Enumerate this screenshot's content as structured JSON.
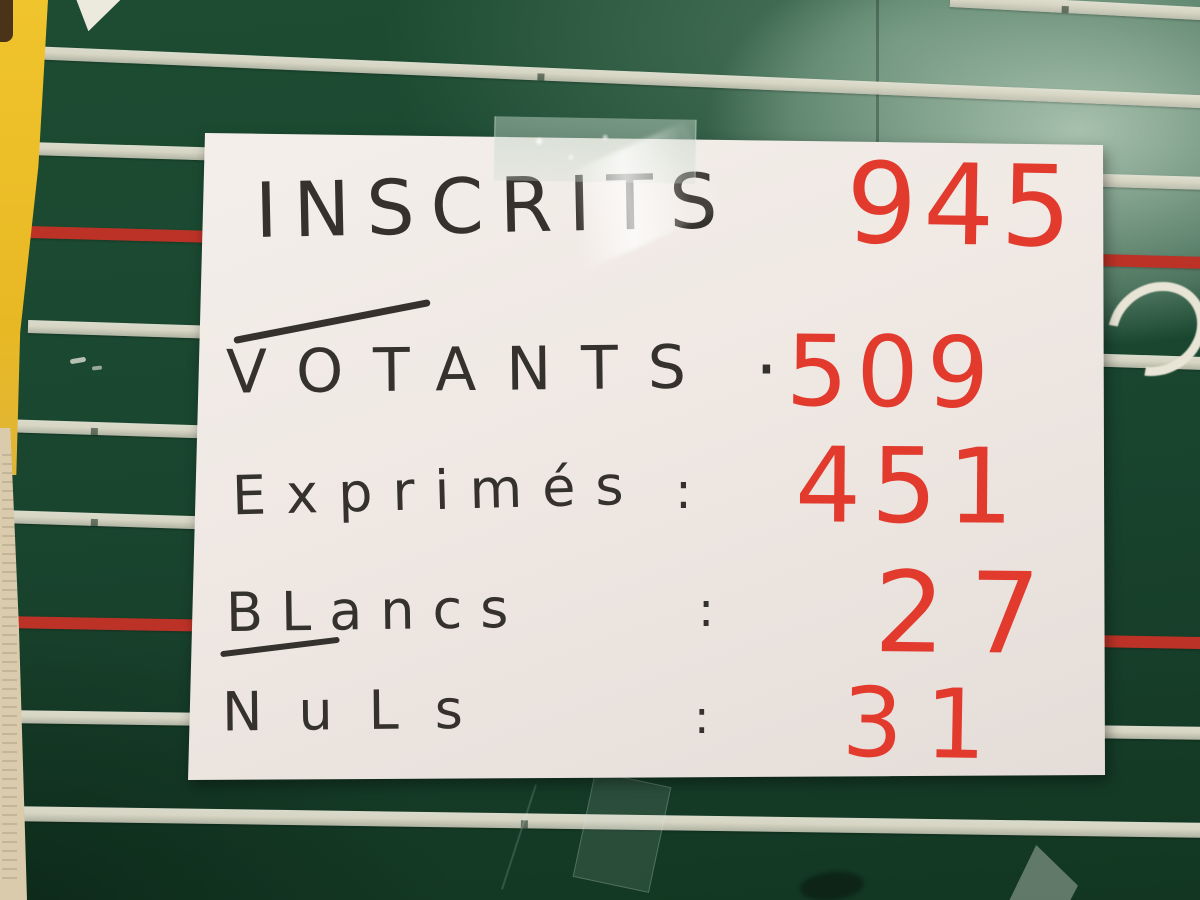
{
  "photo": {
    "description": "Handwritten election results sign on white paper taped to a green board with painted court lines"
  },
  "sign": {
    "rows": [
      {
        "label": "INSCRITS",
        "separator": "",
        "value": "945"
      },
      {
        "label": "VOTANTS",
        "separator": "·",
        "value": "509"
      },
      {
        "label": "Exprimés",
        "separator": ":",
        "value": "451"
      },
      {
        "label": "BLancs",
        "separator": ":",
        "value": "27"
      },
      {
        "label": "NuLs",
        "separator": ":",
        "value": "31"
      }
    ],
    "ink_color": "#35312d",
    "value_color": "#e23b2e",
    "paper_color": "#efe8e3"
  },
  "board": {
    "base_color": "#1d4c32",
    "stripe_white": "#d7d5c4",
    "stripe_red": "#bd3227",
    "edge_yellow": "#f0c42c",
    "edge_beige": "#d9cbab",
    "chalk_color": "#e8e4d6"
  }
}
